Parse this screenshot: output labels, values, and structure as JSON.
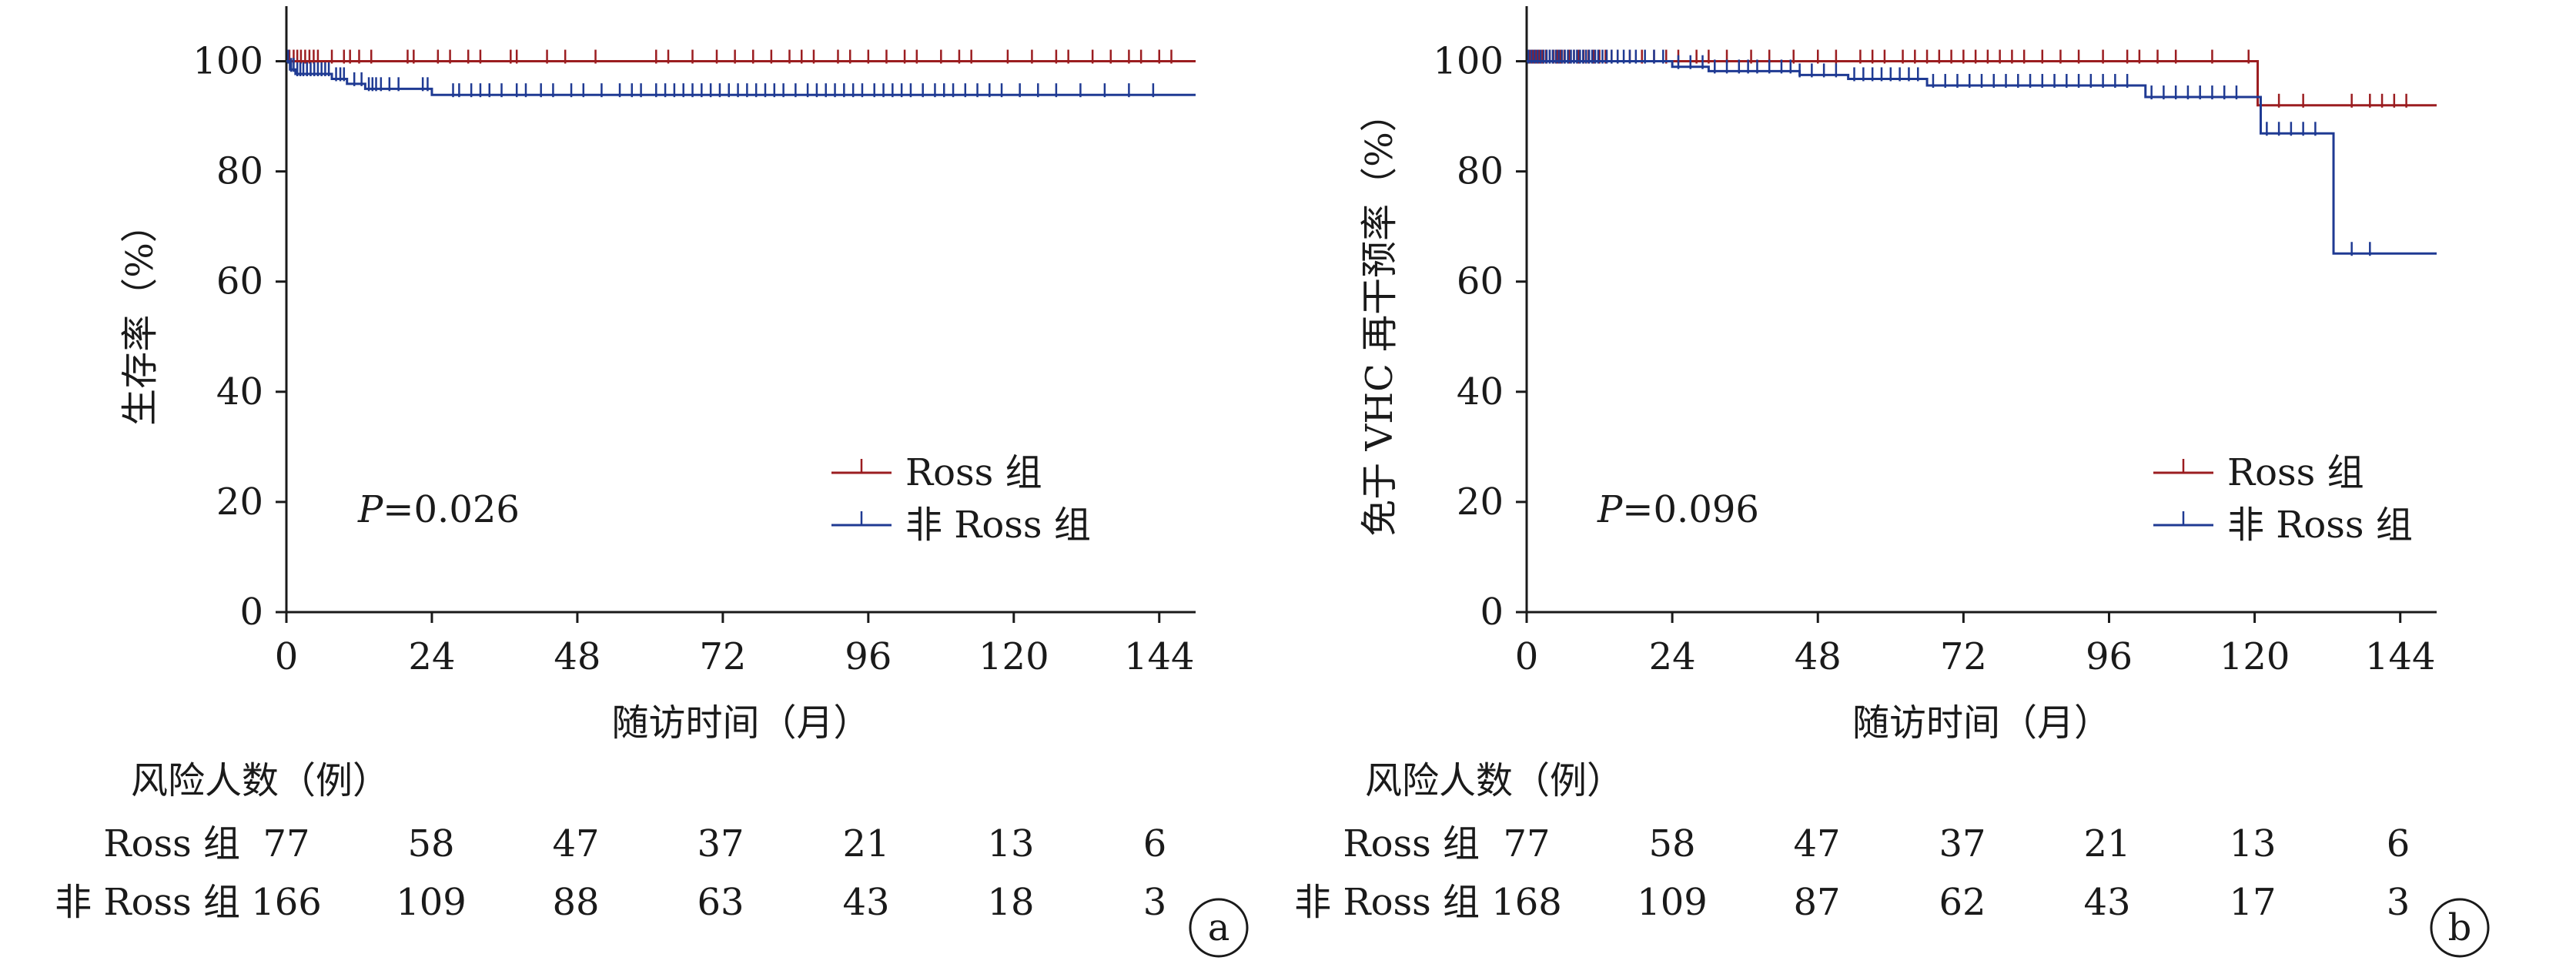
{
  "chart_data": [
    {
      "panel_label": "a",
      "type": "line",
      "ylabel": "生存率（%）",
      "xlabel": "随访时间（月）",
      "xticks": [
        0,
        24,
        48,
        72,
        96,
        120,
        144
      ],
      "yticks": [
        0,
        20,
        40,
        60,
        80,
        100
      ],
      "xlim": [
        0,
        150
      ],
      "ylim": [
        0,
        110
      ],
      "p_label": "P",
      "p_value": "=0.026",
      "legend": {
        "placement": "lower-right",
        "entries": [
          {
            "label": "Ross 组",
            "color": "#9b1d20"
          },
          {
            "label": "非 Ross 组",
            "color": "#1f3a93"
          }
        ]
      },
      "series": [
        {
          "name": "Ross 组",
          "color": "#9b1d20",
          "steps": [
            [
              0,
              100
            ],
            [
              150,
              100
            ]
          ],
          "censor": [
            0.5,
            1.2,
            1.8,
            2.4,
            3.1,
            3.8,
            4.5,
            5.2,
            7.5,
            9.5,
            10.5,
            12,
            14,
            20,
            21,
            25,
            27,
            30,
            32,
            37,
            38,
            43,
            46,
            51,
            61,
            63,
            67,
            71,
            74,
            77,
            80,
            83,
            85,
            87,
            91,
            93,
            96,
            99,
            102,
            104,
            108,
            111,
            113,
            119,
            123,
            127,
            129,
            133,
            136,
            139,
            141,
            144,
            146
          ]
        },
        {
          "name": "非 Ross 组",
          "color": "#1f3a93",
          "steps": [
            [
              0,
              100
            ],
            [
              0.6,
              98.5
            ],
            [
              1.5,
              97.7
            ],
            [
              7.5,
              96.8
            ],
            [
              10,
              95.9
            ],
            [
              13,
              95.0
            ],
            [
              24,
              93.9
            ],
            [
              150,
              93.9
            ]
          ],
          "censor": [
            0.3,
            0.8,
            1.2,
            1.8,
            2.3,
            2.8,
            3.4,
            4.0,
            4.6,
            5.2,
            5.8,
            6.4,
            7.0,
            8.2,
            8.9,
            9.5,
            11.2,
            12.4,
            13.6,
            14.2,
            14.8,
            15.6,
            17,
            18.5,
            22.5,
            23.3,
            27.5,
            28.5,
            30.5,
            32,
            33.5,
            35.5,
            38,
            39.5,
            42,
            44,
            47,
            49,
            52,
            55,
            57,
            58.5,
            61,
            62.5,
            64,
            65.5,
            67,
            68.5,
            70,
            71.5,
            73,
            74.5,
            76,
            77.5,
            79,
            80.5,
            82,
            84,
            86,
            87.5,
            89,
            90.5,
            92,
            93.5,
            95,
            97,
            98.5,
            100,
            101.5,
            103,
            105,
            107,
            108.5,
            110,
            112,
            114,
            116,
            118,
            121,
            124,
            127,
            131,
            135,
            139,
            143
          ]
        }
      ],
      "risk_table": {
        "title": "风险人数（例）",
        "rows": [
          {
            "label": "Ross 组",
            "values": [
              "77",
              "58",
              "47",
              "37",
              "21",
              "13",
              "6"
            ]
          },
          {
            "label": "非 Ross 组",
            "values": [
              "166",
              "109",
              "88",
              "63",
              "43",
              "18",
              "3"
            ]
          }
        ]
      }
    },
    {
      "panel_label": "b",
      "type": "line",
      "ylabel": "免于 VHC 再干预率（%）",
      "xlabel": "随访时间（月）",
      "xticks": [
        0,
        24,
        48,
        72,
        96,
        120,
        144
      ],
      "yticks": [
        0,
        20,
        40,
        60,
        80,
        100
      ],
      "xlim": [
        0,
        150
      ],
      "ylim": [
        0,
        110
      ],
      "p_label": "P",
      "p_value": "=0.096",
      "legend": {
        "placement": "lower-right",
        "entries": [
          {
            "label": "Ross 组",
            "color": "#9b1d20"
          },
          {
            "label": "非 Ross 组",
            "color": "#1f3a93"
          }
        ]
      },
      "series": [
        {
          "name": "Ross 组",
          "color": "#9b1d20",
          "steps": [
            [
              0,
              100
            ],
            [
              120.5,
              100
            ],
            [
              120.5,
              92
            ],
            [
              150,
              92
            ]
          ],
          "censor": [
            0.5,
            1.0,
            1.5,
            2.0,
            2.6,
            3.2,
            3.8,
            4.4,
            5.0,
            5.6,
            6.2,
            7.0,
            7.8,
            8.6,
            9.4,
            10.2,
            11,
            12,
            13,
            14,
            15,
            17,
            19,
            21,
            23,
            25,
            28,
            30,
            33,
            37,
            40,
            44,
            48,
            51,
            55,
            57,
            59,
            62,
            64,
            66,
            68,
            70,
            72,
            74,
            76,
            78,
            80,
            82,
            85,
            88,
            91,
            95,
            99,
            101,
            104,
            107,
            113,
            119,
            124,
            128,
            136,
            139,
            141,
            143,
            145
          ]
        },
        {
          "name": "非 Ross 组",
          "color": "#1f3a93",
          "steps": [
            [
              0,
              100
            ],
            [
              24,
              99.0
            ],
            [
              30,
              98.2
            ],
            [
              45,
              97.5
            ],
            [
              53,
              96.8
            ],
            [
              66,
              95.6
            ],
            [
              102,
              93.5
            ],
            [
              121,
              86.9
            ],
            [
              133,
              65.1
            ],
            [
              150,
              65.1
            ]
          ],
          "censor": [
            0.3,
            0.8,
            1.3,
            1.8,
            2.3,
            2.8,
            3.3,
            3.8,
            4.3,
            4.8,
            5.3,
            5.8,
            6.3,
            6.8,
            7.3,
            7.8,
            8.3,
            8.8,
            9.3,
            9.8,
            10.3,
            10.8,
            11.3,
            11.8,
            12.5,
            13.2,
            14,
            15,
            16,
            17,
            18,
            19.5,
            21,
            22.5,
            25,
            27,
            29,
            31,
            33,
            35,
            36.5,
            38,
            40,
            42,
            43.5,
            45,
            47,
            49,
            51,
            54,
            55.5,
            57,
            58.5,
            60,
            61.5,
            63,
            64.5,
            67,
            69,
            71,
            73,
            75,
            77,
            79,
            81,
            83,
            85,
            87,
            89,
            91,
            93,
            95,
            97,
            99,
            103,
            105,
            107,
            109,
            111,
            113,
            115,
            117,
            122,
            124,
            126,
            128,
            130,
            136,
            139
          ]
        }
      ],
      "risk_table": {
        "title": "风险人数（例）",
        "rows": [
          {
            "label": "Ross 组",
            "values": [
              "77",
              "58",
              "47",
              "37",
              "21",
              "13",
              "6"
            ]
          },
          {
            "label": "非 Ross 组",
            "values": [
              "168",
              "109",
              "87",
              "62",
              "43",
              "17",
              "3"
            ]
          }
        ]
      }
    }
  ]
}
